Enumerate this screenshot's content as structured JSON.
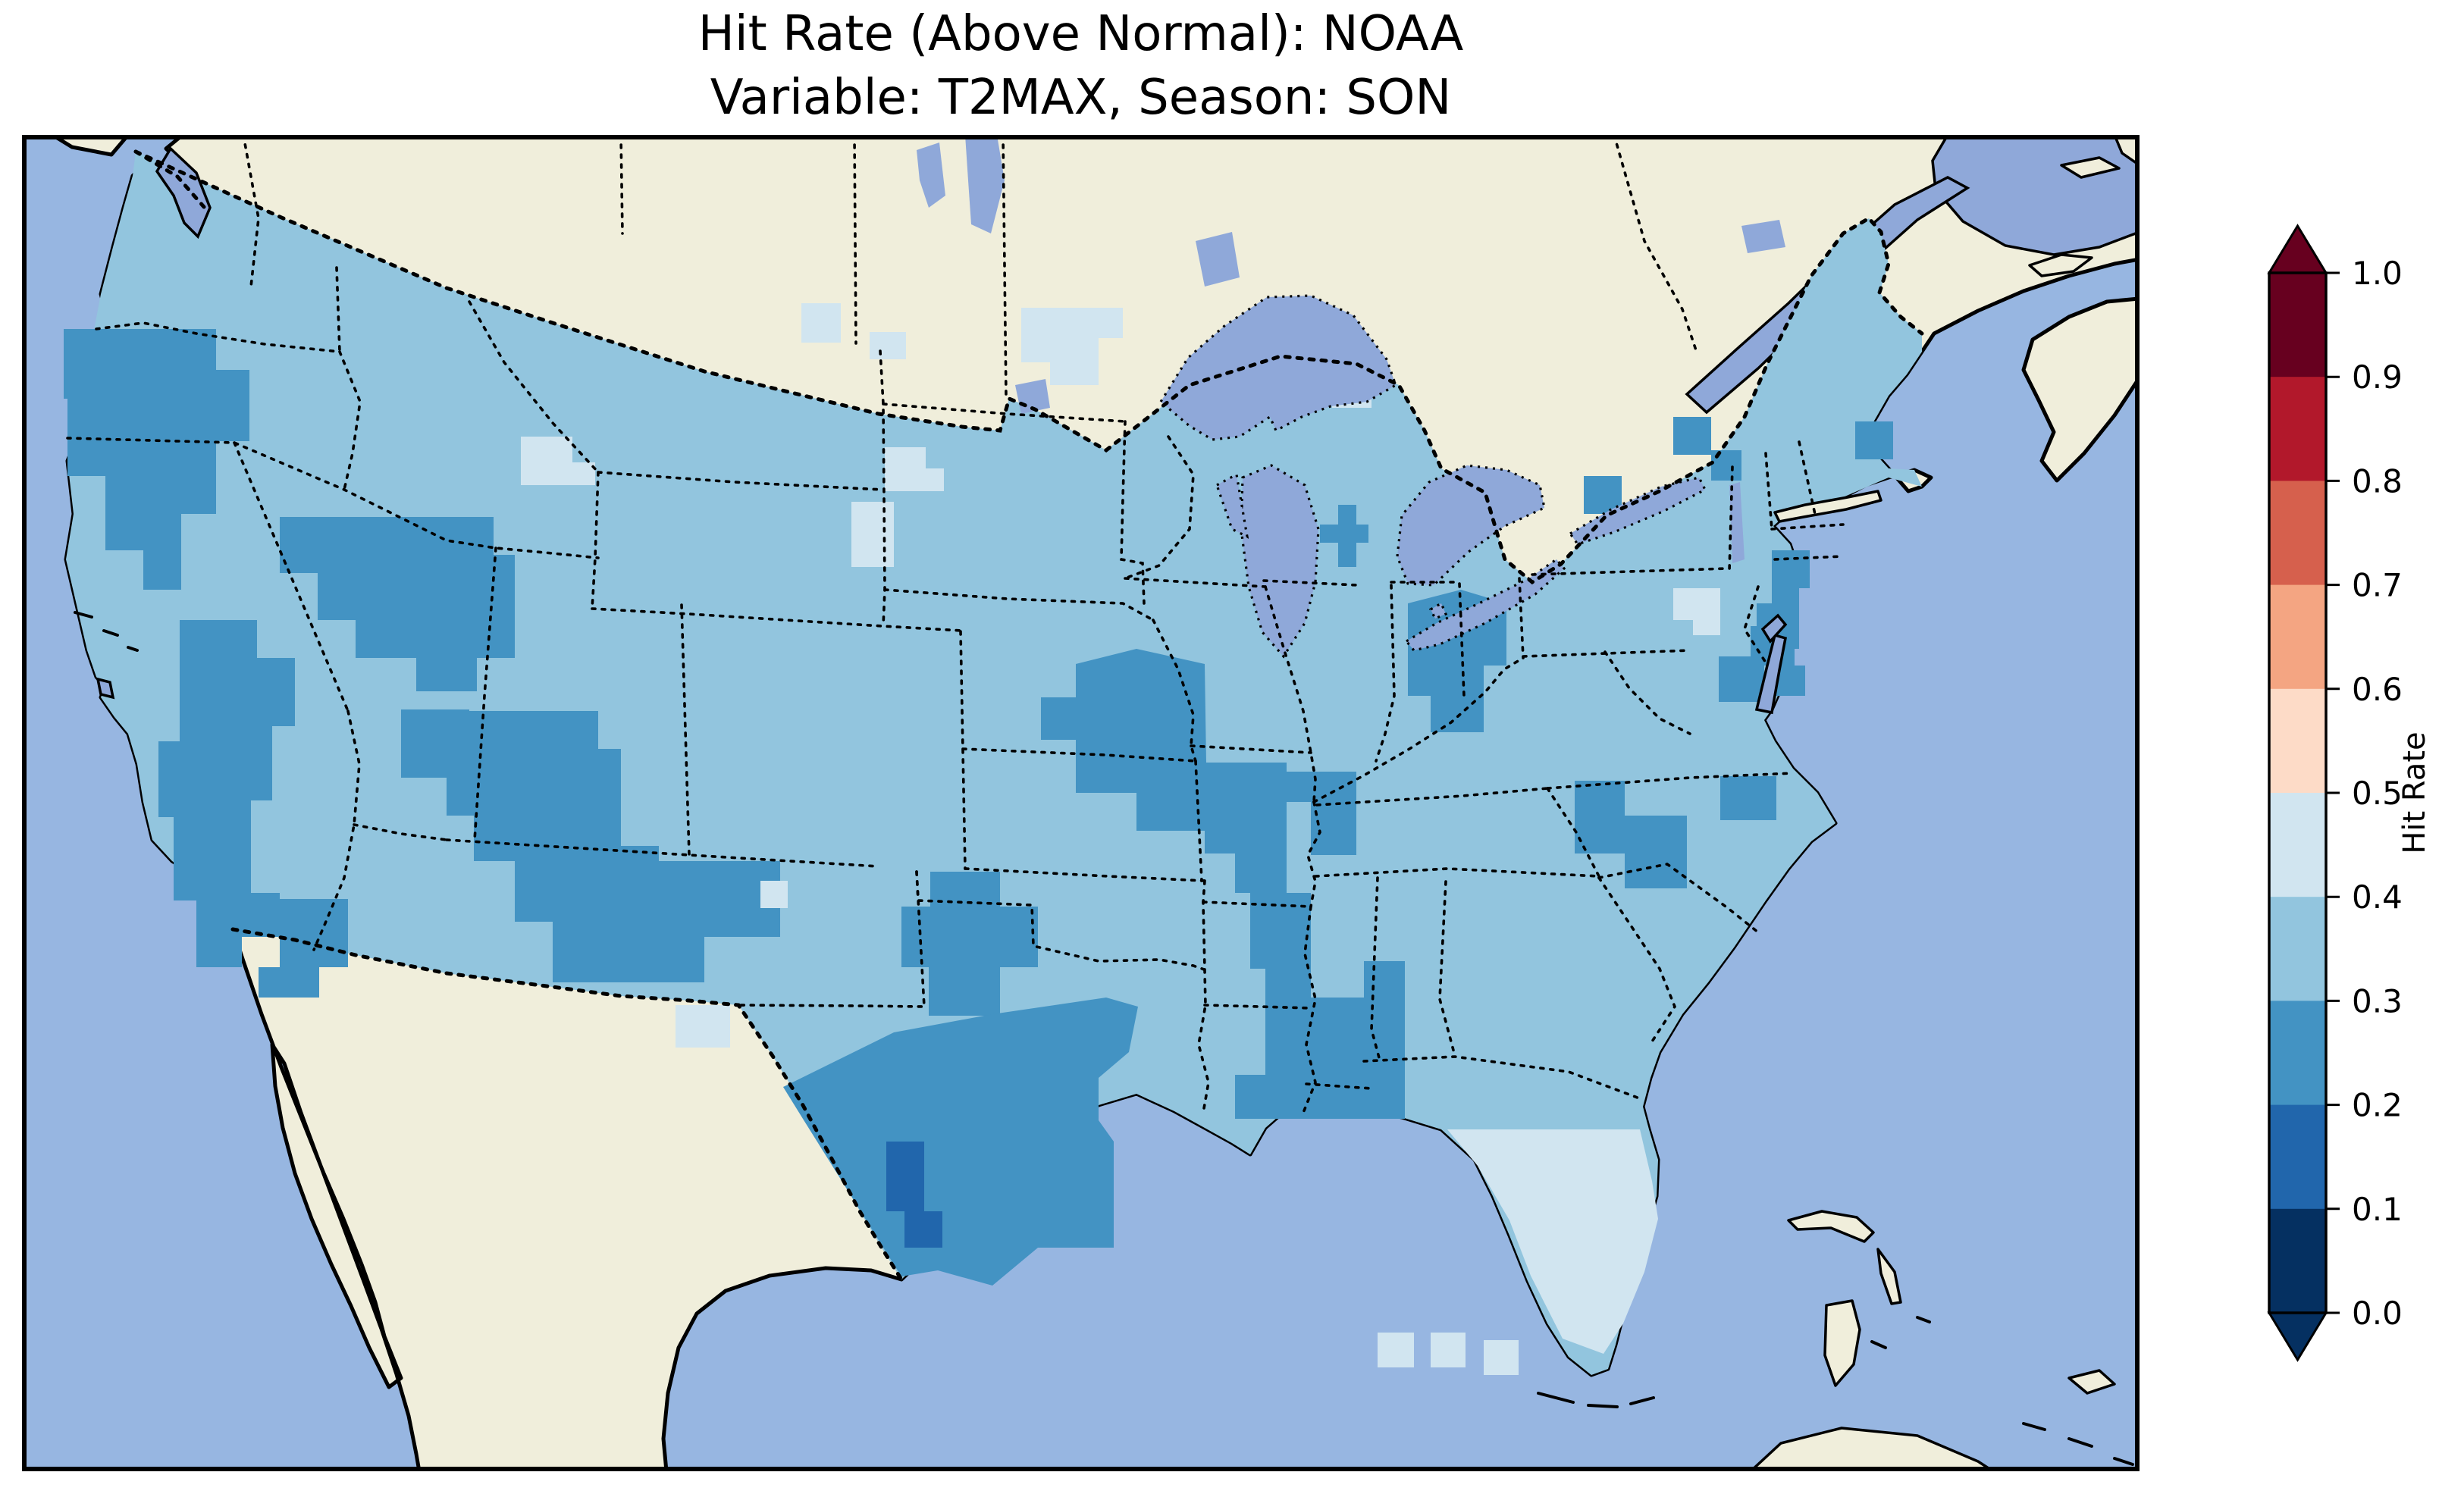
{
  "title": {
    "line1": "Hit Rate (Above Normal): NOAA",
    "line2": "Variable: T2MAX, Season: SON"
  },
  "colorbar": {
    "label": "Hit Rate",
    "tick_labels": [
      "1.0",
      "0.9",
      "0.8",
      "0.7",
      "0.6",
      "0.5",
      "0.4",
      "0.3",
      "0.2",
      "0.1",
      "0.0"
    ],
    "bins_top_to_bottom": [
      {
        "range": "0.9–1.0",
        "color": "#67001f"
      },
      {
        "range": "0.8–0.9",
        "color": "#b2182b"
      },
      {
        "range": "0.7–0.8",
        "color": "#d6604d"
      },
      {
        "range": "0.6–0.7",
        "color": "#f4a582"
      },
      {
        "range": "0.5–0.6",
        "color": "#fddbc7"
      },
      {
        "range": "0.4–0.5",
        "color": "#d1e5f0"
      },
      {
        "range": "0.3–0.4",
        "color": "#92c5de"
      },
      {
        "range": "0.2–0.3",
        "color": "#4393c3"
      },
      {
        "range": "0.1–0.2",
        "color": "#2166ac"
      },
      {
        "range": "0.0–0.1",
        "color": "#053061"
      }
    ],
    "over_arrow_color": "#67001f",
    "under_arrow_color": "#053061"
  },
  "map": {
    "colors": {
      "ocean": "#97b6e1",
      "land": "#f0eedb",
      "lake": "#8fa8d9",
      "bin1": "#2166ac",
      "bin2": "#4393c3",
      "bin3": "#92c5de",
      "bin4": "#d1e5f0",
      "bin5": "#fddbc7"
    },
    "extent": "Contiguous United States with southern Canada, northern Mexico, Gulf of Mexico, Bahamas",
    "features": [
      "US state boundaries (dotted)",
      "National borders (dashed)",
      "Great Lakes",
      "Coastlines"
    ]
  },
  "chart_data": {
    "type": "heatmap",
    "title": "Hit Rate (Above Normal): NOAA\nVariable: T2MAX, Season: SON",
    "variable": "T2MAX",
    "season": "SON",
    "model": "NOAA",
    "metric": "Hit Rate (Above Normal)",
    "colorbar_label": "Hit Rate",
    "value_range": [
      0.0,
      1.0
    ],
    "bin_width": 0.1,
    "colormap": "RdBu reversed (blue = low hit rate, red = high hit rate), 10 discrete bins",
    "legend_position": "right vertical colorbar with over/under arrows",
    "regions": [
      {
        "name": "Most of contiguous US (default field value)",
        "hit_rate": "0.3–0.4"
      },
      {
        "name": "SW Oregon / Northern California coast",
        "hit_rate": "0.2–0.3"
      },
      {
        "name": "Sierra Nevada / interior central-southern California",
        "hit_rate": "0.2–0.3"
      },
      {
        "name": "Northeastern Nevada",
        "hit_rate": "0.2–0.3"
      },
      {
        "name": "Southwest Utah / northern Arizona / Four Corners into NW New Mexico",
        "hit_rate": "0.2–0.3"
      },
      {
        "name": "South-central Kansas / north-central Oklahoma",
        "hit_rate": "0.2–0.3"
      },
      {
        "name": "Central and southern Texas (large blob)",
        "hit_rate": "0.2–0.3"
      },
      {
        "name": "South-central Texas core cells",
        "hit_rate": "0.1–0.2"
      },
      {
        "name": "Ozarks: southern Missouri / northern Arkansas / eastern Oklahoma",
        "hit_rate": "0.2–0.3"
      },
      {
        "name": "Lower Mississippi Valley band through Mississippi / Louisiana / Alabama",
        "hit_rate": "0.2–0.3"
      },
      {
        "name": "Western Kentucky / Tennessee along Mississippi River",
        "hit_rate": "0.2–0.3"
      },
      {
        "name": "Ohio",
        "hit_rate": "0.2–0.3"
      },
      {
        "name": "Central Lower Michigan (small cross)",
        "hit_rate": "0.2–0.3"
      },
      {
        "name": "New Jersey / Delmarva / Chesapeake",
        "hit_rate": "0.2–0.3"
      },
      {
        "name": "Central Carolinas",
        "hit_rate": "0.2–0.3"
      },
      {
        "name": "Scattered New England coastal cells",
        "hit_rate": "0.2–0.3"
      },
      {
        "name": "Florida peninsula",
        "hit_rate": "0.4–0.5"
      },
      {
        "name": "Scattered pale cells (MT/ID border, ND-MN border, SD, NE/CO border, WI, central PA, S New Mexico, Florida Keys)",
        "hit_rate": "0.4–0.5"
      }
    ]
  }
}
